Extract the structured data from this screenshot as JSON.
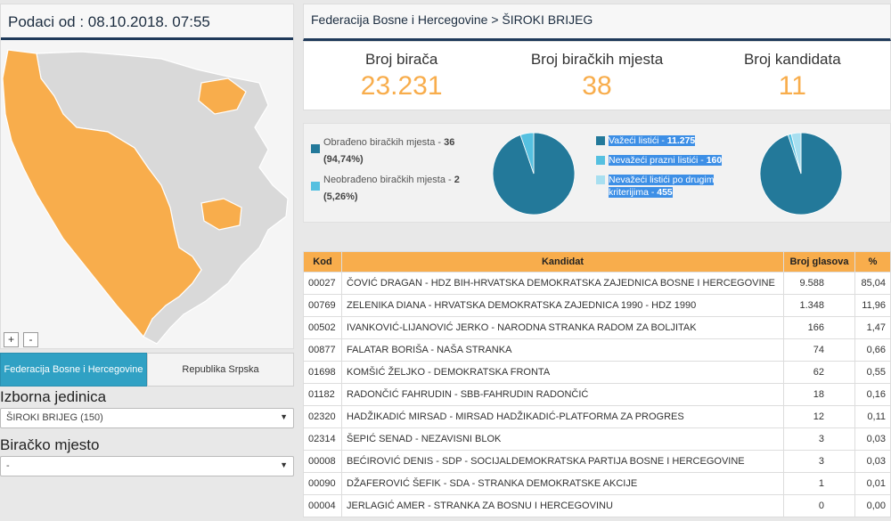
{
  "header": {
    "data_timestamp": "Podaci od : 08.10.2018. 07:55",
    "breadcrumb": "Federacija Bosne i Hercegovine > ŠIROKI BRIJEG"
  },
  "map": {
    "zoom_in": "+",
    "zoom_out": "-",
    "colors": {
      "fbih": "#f8ad4c",
      "rs": "#d9d9d9"
    }
  },
  "entity_tabs": [
    "Federacija Bosne i Hercegovine",
    "Republika Srpska"
  ],
  "filters": {
    "unit_label": "Izborna jedinica",
    "unit_value": "ŠIROKI BRIJEG (150)",
    "station_label": "Biračko mjesto",
    "station_value": "-"
  },
  "stats": [
    {
      "label": "Broj birača",
      "value": "23.231"
    },
    {
      "label": "Broj biračkih mjesta",
      "value": "38"
    },
    {
      "label": "Broj kandidata",
      "value": "11"
    }
  ],
  "processed_chart": {
    "items": [
      {
        "label": "Obrađeno biračkih mjesta - ",
        "count": "36",
        "pct": "(94,74%)",
        "value": 36,
        "color": "#23799a"
      },
      {
        "label": "Neobrađeno biračkih mjesta - ",
        "count": "2",
        "pct": "(5,26%)",
        "value": 2,
        "color": "#55c0e0"
      }
    ]
  },
  "ballots_chart": {
    "items": [
      {
        "label": "Važeći listići - ",
        "count": "11.275",
        "value": 11275,
        "color": "#23799a"
      },
      {
        "label": "Nevažeći prazni listići - ",
        "count": "160",
        "value": 160,
        "color": "#55c0e0"
      },
      {
        "label": "Nevažeći listići po drugim kriterijima - ",
        "count": "455",
        "value": 455,
        "color": "#a8dff0"
      }
    ]
  },
  "table": {
    "headers": [
      "Kod",
      "Kandidat",
      "Broj glasova",
      "%"
    ],
    "rows": [
      [
        "00027",
        "ČOVIĆ DRAGAN - HDZ BIH-HRVATSKA DEMOKRATSKA ZAJEDNICA BOSNE I HERCEGOVINE",
        "9.588",
        "85,04"
      ],
      [
        "00769",
        "ZELENIKA DIANA - HRVATSKA DEMOKRATSKA ZAJEDNICA 1990 - HDZ 1990",
        "1.348",
        "11,96"
      ],
      [
        "00502",
        "IVANKOVIĆ-LIJANOVIĆ JERKO - NARODNA STRANKA RADOM ZA BOLJITAK",
        "166",
        "1,47"
      ],
      [
        "00877",
        "FALATAR BORIŠA - NAŠA STRANKA",
        "74",
        "0,66"
      ],
      [
        "01698",
        "KOMŠIĆ ŽELJKO - DEMOKRATSKA FRONTA",
        "62",
        "0,55"
      ],
      [
        "01182",
        "RADONČIĆ FAHRUDIN - SBB-FAHRUDIN RADONČIĆ",
        "18",
        "0,16"
      ],
      [
        "02320",
        "HADŽIKADIĆ MIRSAD - MIRSAD HADŽIKADIĆ-PLATFORMA ZA PROGRES",
        "12",
        "0,11"
      ],
      [
        "02314",
        "ŠEPIĆ SENAD - NEZAVISNI BLOK",
        "3",
        "0,03"
      ],
      [
        "00008",
        "BEĆIROVIĆ DENIS - SDP - SOCIJALDEMOKRATSKA PARTIJA BOSNE I HERCEGOVINE",
        "3",
        "0,03"
      ],
      [
        "00090",
        "DŽAFEROVIĆ ŠEFIK - SDA - STRANKA DEMOKRATSKE AKCIJE",
        "1",
        "0,01"
      ],
      [
        "00004",
        "JERLAGIĆ AMER - STRANKA ZA BOSNU I HERCEGOVINU",
        "0",
        "0,00"
      ]
    ]
  }
}
